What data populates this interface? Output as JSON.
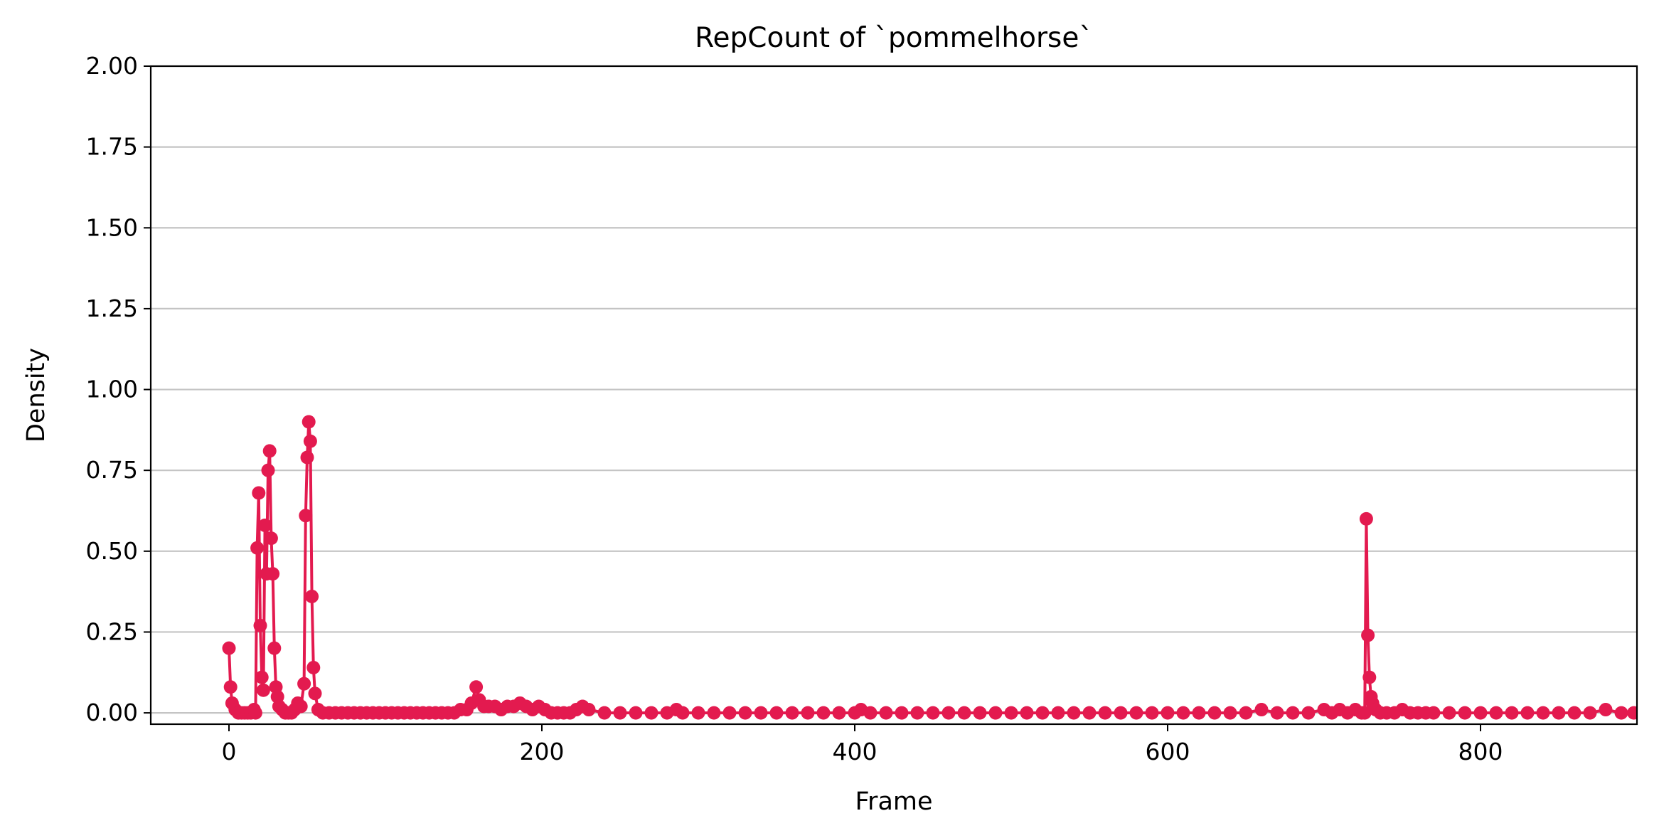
{
  "chart_data": {
    "type": "line",
    "title": "RepCount of `pommelhorse`",
    "xlabel": "Frame",
    "ylabel": "Density",
    "xlim": [
      -50,
      900
    ],
    "ylim": [
      -0.035,
      2.0
    ],
    "x_ticks": [
      0,
      200,
      400,
      600,
      800
    ],
    "x_tick_labels": [
      "0",
      "200",
      "400",
      "600",
      "800"
    ],
    "y_ticks": [
      0,
      0.25,
      0.5,
      0.75,
      1.0,
      1.25,
      1.5,
      1.75,
      2.0
    ],
    "y_tick_labels": [
      "0.00",
      "0.25",
      "0.50",
      "0.75",
      "1.00",
      "1.25",
      "1.50",
      "1.75",
      "2.00"
    ],
    "grid": "horizontal",
    "legend": "none",
    "series": [
      {
        "color": "#e31a4f",
        "marker": "circle",
        "points": [
          [
            0,
            0.2
          ],
          [
            1,
            0.08
          ],
          [
            2,
            0.03
          ],
          [
            4,
            0.01
          ],
          [
            6,
            0.0
          ],
          [
            8,
            0.0
          ],
          [
            10,
            0.0
          ],
          [
            12,
            0.0
          ],
          [
            14,
            0.0
          ],
          [
            16,
            0.01
          ],
          [
            17,
            0.0
          ],
          [
            18,
            0.51
          ],
          [
            19,
            0.68
          ],
          [
            20,
            0.27
          ],
          [
            21,
            0.11
          ],
          [
            22,
            0.07
          ],
          [
            23,
            0.58
          ],
          [
            24,
            0.43
          ],
          [
            25,
            0.75
          ],
          [
            26,
            0.81
          ],
          [
            27,
            0.54
          ],
          [
            28,
            0.43
          ],
          [
            29,
            0.2
          ],
          [
            30,
            0.08
          ],
          [
            31,
            0.05
          ],
          [
            32,
            0.02
          ],
          [
            34,
            0.01
          ],
          [
            36,
            0.0
          ],
          [
            38,
            0.0
          ],
          [
            40,
            0.0
          ],
          [
            42,
            0.01
          ],
          [
            44,
            0.03
          ],
          [
            46,
            0.02
          ],
          [
            48,
            0.09
          ],
          [
            49,
            0.61
          ],
          [
            50,
            0.79
          ],
          [
            51,
            0.9
          ],
          [
            52,
            0.84
          ],
          [
            53,
            0.36
          ],
          [
            54,
            0.14
          ],
          [
            55,
            0.06
          ],
          [
            57,
            0.01
          ],
          [
            60,
            0.0
          ],
          [
            64,
            0.0
          ],
          [
            68,
            0.0
          ],
          [
            72,
            0.0
          ],
          [
            76,
            0.0
          ],
          [
            80,
            0.0
          ],
          [
            84,
            0.0
          ],
          [
            88,
            0.0
          ],
          [
            92,
            0.0
          ],
          [
            96,
            0.0
          ],
          [
            100,
            0.0
          ],
          [
            104,
            0.0
          ],
          [
            108,
            0.0
          ],
          [
            112,
            0.0
          ],
          [
            116,
            0.0
          ],
          [
            120,
            0.0
          ],
          [
            124,
            0.0
          ],
          [
            128,
            0.0
          ],
          [
            132,
            0.0
          ],
          [
            136,
            0.0
          ],
          [
            140,
            0.0
          ],
          [
            144,
            0.0
          ],
          [
            148,
            0.01
          ],
          [
            152,
            0.01
          ],
          [
            155,
            0.03
          ],
          [
            158,
            0.08
          ],
          [
            160,
            0.04
          ],
          [
            163,
            0.02
          ],
          [
            166,
            0.02
          ],
          [
            170,
            0.02
          ],
          [
            174,
            0.01
          ],
          [
            178,
            0.02
          ],
          [
            182,
            0.02
          ],
          [
            186,
            0.03
          ],
          [
            190,
            0.02
          ],
          [
            194,
            0.01
          ],
          [
            198,
            0.02
          ],
          [
            202,
            0.01
          ],
          [
            206,
            0.0
          ],
          [
            210,
            0.0
          ],
          [
            214,
            0.0
          ],
          [
            218,
            0.0
          ],
          [
            222,
            0.01
          ],
          [
            226,
            0.02
          ],
          [
            230,
            0.01
          ],
          [
            240,
            0.0
          ],
          [
            250,
            0.0
          ],
          [
            260,
            0.0
          ],
          [
            270,
            0.0
          ],
          [
            280,
            0.0
          ],
          [
            286,
            0.01
          ],
          [
            290,
            0.0
          ],
          [
            300,
            0.0
          ],
          [
            310,
            0.0
          ],
          [
            320,
            0.0
          ],
          [
            330,
            0.0
          ],
          [
            340,
            0.0
          ],
          [
            350,
            0.0
          ],
          [
            360,
            0.0
          ],
          [
            370,
            0.0
          ],
          [
            380,
            0.0
          ],
          [
            390,
            0.0
          ],
          [
            400,
            0.0
          ],
          [
            404,
            0.01
          ],
          [
            410,
            0.0
          ],
          [
            420,
            0.0
          ],
          [
            430,
            0.0
          ],
          [
            440,
            0.0
          ],
          [
            450,
            0.0
          ],
          [
            460,
            0.0
          ],
          [
            470,
            0.0
          ],
          [
            480,
            0.0
          ],
          [
            490,
            0.0
          ],
          [
            500,
            0.0
          ],
          [
            510,
            0.0
          ],
          [
            520,
            0.0
          ],
          [
            530,
            0.0
          ],
          [
            540,
            0.0
          ],
          [
            550,
            0.0
          ],
          [
            560,
            0.0
          ],
          [
            570,
            0.0
          ],
          [
            580,
            0.0
          ],
          [
            590,
            0.0
          ],
          [
            600,
            0.0
          ],
          [
            610,
            0.0
          ],
          [
            620,
            0.0
          ],
          [
            630,
            0.0
          ],
          [
            640,
            0.0
          ],
          [
            650,
            0.0
          ],
          [
            660,
            0.01
          ],
          [
            670,
            0.0
          ],
          [
            680,
            0.0
          ],
          [
            690,
            0.0
          ],
          [
            700,
            0.01
          ],
          [
            705,
            0.0
          ],
          [
            710,
            0.01
          ],
          [
            715,
            0.0
          ],
          [
            720,
            0.01
          ],
          [
            724,
            0.0
          ],
          [
            726,
            0.0
          ],
          [
            727,
            0.6
          ],
          [
            728,
            0.24
          ],
          [
            729,
            0.11
          ],
          [
            730,
            0.05
          ],
          [
            731,
            0.03
          ],
          [
            733,
            0.01
          ],
          [
            736,
            0.0
          ],
          [
            740,
            0.0
          ],
          [
            745,
            0.0
          ],
          [
            750,
            0.01
          ],
          [
            755,
            0.0
          ],
          [
            760,
            0.0
          ],
          [
            765,
            0.0
          ],
          [
            770,
            0.0
          ],
          [
            780,
            0.0
          ],
          [
            790,
            0.0
          ],
          [
            800,
            0.0
          ],
          [
            810,
            0.0
          ],
          [
            820,
            0.0
          ],
          [
            830,
            0.0
          ],
          [
            840,
            0.0
          ],
          [
            850,
            0.0
          ],
          [
            860,
            0.0
          ],
          [
            870,
            0.0
          ],
          [
            880,
            0.01
          ],
          [
            890,
            0.0
          ],
          [
            898,
            0.0
          ]
        ]
      }
    ]
  }
}
